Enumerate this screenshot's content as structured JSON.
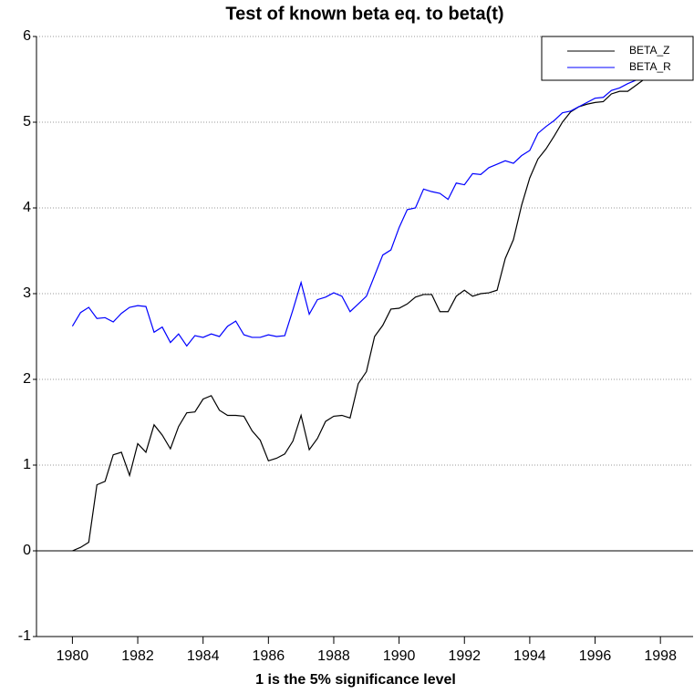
{
  "chart_data": {
    "type": "line",
    "title": "Test of known beta eq. to beta(t)",
    "xlabel": "1 is the 5% significance level",
    "x": [
      1980,
      1980.25,
      1980.5,
      1980.75,
      1981,
      1981.25,
      1981.5,
      1981.75,
      1982,
      1982.25,
      1982.5,
      1982.75,
      1983,
      1983.25,
      1983.5,
      1983.75,
      1984,
      1984.25,
      1984.5,
      1984.75,
      1985,
      1985.25,
      1985.5,
      1985.75,
      1986,
      1986.25,
      1986.5,
      1986.75,
      1987,
      1987.25,
      1987.5,
      1987.75,
      1988,
      1988.25,
      1988.5,
      1988.75,
      1989,
      1989.25,
      1989.5,
      1989.75,
      1990,
      1990.25,
      1990.5,
      1990.75,
      1991,
      1991.25,
      1991.5,
      1991.75,
      1992,
      1992.25,
      1992.5,
      1992.75,
      1993,
      1993.25,
      1993.5,
      1993.75,
      1994,
      1994.25,
      1994.5,
      1994.75,
      1995,
      1995.25,
      1995.5,
      1995.75,
      1996,
      1996.25,
      1996.5,
      1996.75,
      1997,
      1997.25,
      1997.5
    ],
    "series": [
      {
        "name": "BETA_Z",
        "color": "#000000",
        "values": [
          0,
          0.04,
          0.1,
          0.77,
          0.81,
          1.12,
          1.15,
          0.88,
          1.25,
          1.15,
          1.47,
          1.35,
          1.19,
          1.45,
          1.61,
          1.62,
          1.77,
          1.81,
          1.64,
          1.58,
          1.58,
          1.57,
          1.4,
          1.29,
          1.05,
          1.08,
          1.13,
          1.28,
          1.58,
          1.18,
          1.31,
          1.51,
          1.57,
          1.58,
          1.55,
          1.95,
          2.09,
          2.5,
          2.63,
          2.82,
          2.83,
          2.88,
          2.96,
          2.99,
          2.99,
          2.79,
          2.79,
          2.97,
          3.04,
          2.97,
          3.0,
          3.01,
          3.04,
          3.41,
          3.63,
          4.03,
          4.35,
          4.57,
          4.69,
          4.84,
          5.0,
          5.12,
          5.18,
          5.21,
          5.23,
          5.24,
          5.33,
          5.36,
          5.36,
          5.43,
          5.5
        ]
      },
      {
        "name": "BETA_R",
        "color": "#0000ff",
        "values": [
          2.62,
          2.78,
          2.84,
          2.71,
          2.72,
          2.67,
          2.77,
          2.84,
          2.86,
          2.85,
          2.55,
          2.61,
          2.43,
          2.53,
          2.39,
          2.51,
          2.49,
          2.53,
          2.5,
          2.62,
          2.68,
          2.52,
          2.49,
          2.49,
          2.52,
          2.5,
          2.51,
          2.81,
          3.13,
          2.76,
          2.93,
          2.96,
          3.01,
          2.97,
          2.79,
          2.88,
          2.97,
          3.21,
          3.45,
          3.51,
          3.77,
          3.98,
          4.0,
          4.22,
          4.19,
          4.17,
          4.1,
          4.29,
          4.27,
          4.4,
          4.39,
          4.47,
          4.51,
          4.55,
          4.52,
          4.61,
          4.67,
          4.87,
          4.95,
          5.02,
          5.11,
          5.13,
          5.18,
          5.23,
          5.28,
          5.29,
          5.37,
          5.4,
          5.45,
          5.49,
          5.52
        ]
      }
    ],
    "xlim": [
      1978.9,
      1999.0
    ],
    "xticks": [
      1980,
      1982,
      1984,
      1986,
      1988,
      1990,
      1992,
      1994,
      1996,
      1998
    ],
    "ylim": [
      -1,
      6
    ],
    "yticks": [
      -1,
      0,
      1,
      2,
      3,
      4,
      5,
      6
    ],
    "hline": 0,
    "grid": true,
    "legend": "upper right"
  }
}
